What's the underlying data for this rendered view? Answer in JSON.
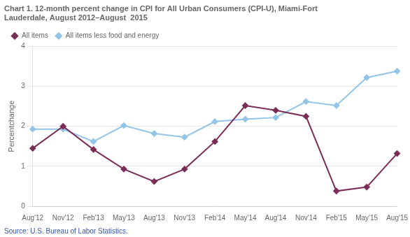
{
  "chart_data": {
    "type": "line",
    "title": [
      "Chart 1. 12-month percent change in CPI for All Urban Consumers (CPI-U), Miami-Fort",
      "Lauderdale, August 2012–August  2015"
    ],
    "ylabel": "Percentchange",
    "annotations": [
      "Source: U.S. Bureau of Labor Statistics."
    ],
    "categories": [
      "Aug'12",
      "Nov'12",
      "Feb'13",
      "May'13",
      "Aug'13",
      "Nov'13",
      "Feb'14",
      "May'14",
      "Aug'14",
      "Nov'14",
      "Feb'15",
      "May'15",
      "Aug'15"
    ],
    "series": [
      {
        "name": "All items",
        "color": "#7B2D56",
        "marker": "diamond",
        "values": [
          1.45,
          2.0,
          1.42,
          0.93,
          0.62,
          0.93,
          1.62,
          2.52,
          2.4,
          2.25,
          0.38,
          0.48,
          1.32
        ]
      },
      {
        "name": "All items less food and energy",
        "color": "#92C5E8",
        "marker": "diamond",
        "values": [
          1.93,
          1.93,
          1.62,
          2.02,
          1.82,
          1.73,
          2.12,
          2.18,
          2.22,
          2.62,
          2.52,
          3.22,
          3.38
        ]
      }
    ],
    "ylim": [
      0,
      4
    ],
    "yticks": [
      0,
      1,
      2,
      3,
      4
    ],
    "grid": true,
    "legend": "upper left"
  }
}
